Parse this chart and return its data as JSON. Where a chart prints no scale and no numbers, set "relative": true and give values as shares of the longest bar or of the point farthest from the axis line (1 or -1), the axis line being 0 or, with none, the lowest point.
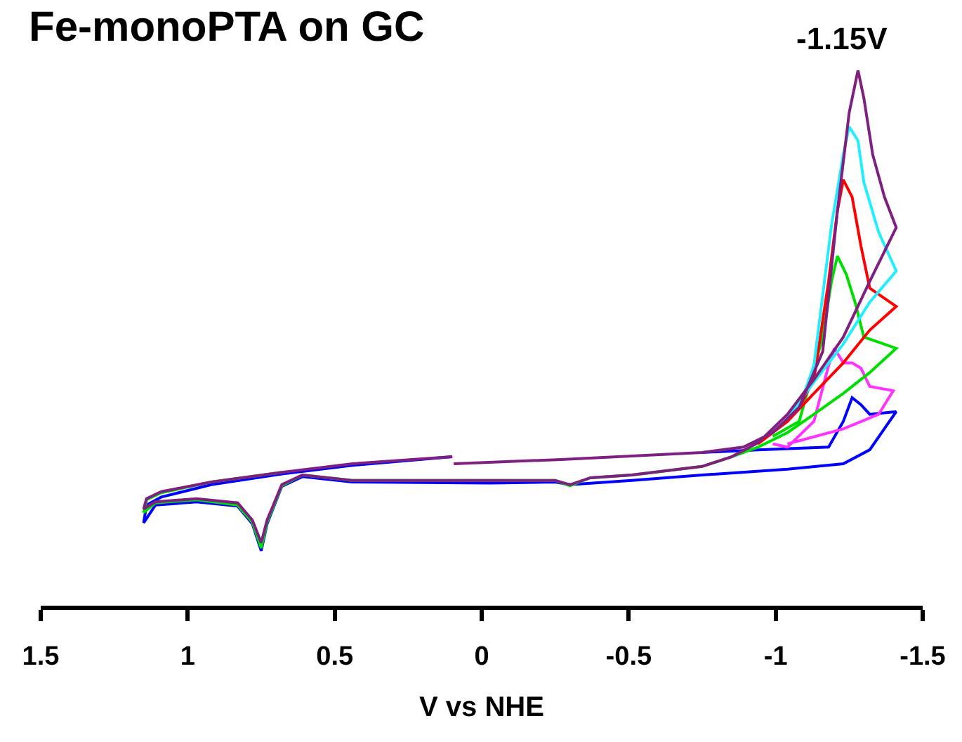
{
  "chart_data": {
    "type": "line",
    "title": "Fe-monoPTA on GC",
    "xlabel": "V vs NHE",
    "annotations": [
      "-1.15V"
    ],
    "relative": true,
    "xlim": [
      1.5,
      -1.5
    ],
    "xticks": [
      1.5,
      1,
      0.5,
      0,
      -0.5,
      -1,
      -1.5
    ],
    "tick_labels": "x",
    "grid": false,
    "marker": "none",
    "line_style": "solid",
    "series": [
      {
        "color": "#0000ff",
        "x": [
          -0.75,
          -0.94,
          -1.18,
          -1.23,
          -1.26,
          -1.29,
          -1.32,
          -1.41,
          -1.32,
          -1.23,
          -1.04,
          -0.75,
          -0.51,
          -0.3,
          -0.25,
          -0.03,
          0.44,
          0.61,
          0.68,
          0.73,
          0.75,
          0.78,
          0.83,
          0.97,
          1.11,
          1.15,
          1.14,
          1.09,
          0.92,
          0.68,
          0.44,
          0.1
        ],
        "values": [
          0.288,
          0.293,
          0.298,
          0.346,
          0.39,
          0.377,
          0.359,
          0.364,
          0.293,
          0.267,
          0.257,
          0.246,
          0.236,
          0.228,
          0.233,
          0.231,
          0.233,
          0.243,
          0.225,
          0.155,
          0.105,
          0.155,
          0.188,
          0.196,
          0.19,
          0.157,
          0.19,
          0.205,
          0.228,
          0.248,
          0.264,
          0.28
        ]
      },
      {
        "color": "#ff33ff",
        "x": [
          -0.99,
          -1.04,
          -1.13,
          -1.18,
          -1.2,
          -1.23,
          -1.26,
          -1.29,
          -1.32,
          -1.4,
          -1.35,
          -1.23,
          -1.04
        ],
        "values": [
          0.304,
          0.298,
          0.346,
          0.45,
          0.482,
          0.455,
          0.455,
          0.445,
          0.411,
          0.403,
          0.359,
          0.332,
          0.304
        ]
      },
      {
        "color": "#00dd00",
        "x": [
          -0.99,
          -1.08,
          -1.16,
          -1.19,
          -1.21,
          -1.24,
          -1.27,
          -1.3,
          -1.41,
          -1.32,
          -1.23,
          -1.13,
          -1.04,
          -0.94,
          -0.85,
          -0.75,
          -0.51,
          -0.37,
          -0.3,
          -0.25,
          -0.03,
          0.44,
          0.61,
          0.68,
          0.73,
          0.75,
          0.78,
          0.83,
          0.97,
          1.11,
          1.15,
          1.14,
          1.09,
          0.92,
          0.68
        ],
        "values": [
          0.318,
          0.346,
          0.503,
          0.607,
          0.654,
          0.62,
          0.568,
          0.503,
          0.482,
          0.437,
          0.398,
          0.359,
          0.325,
          0.298,
          0.28,
          0.262,
          0.246,
          0.241,
          0.226,
          0.236,
          0.236,
          0.236,
          0.246,
          0.226,
          0.158,
          0.11,
          0.158,
          0.19,
          0.2,
          0.194,
          0.176,
          0.2,
          0.213,
          0.233,
          0.251
        ]
      },
      {
        "color": "#ff0000",
        "x": [
          -1.08,
          -1.13,
          -1.18,
          -1.21,
          -1.23,
          -1.26,
          -1.29,
          -1.32,
          -1.41,
          -1.32,
          -1.23,
          -1.13,
          -1.04,
          -0.94
        ],
        "values": [
          0.372,
          0.424,
          0.607,
          0.738,
          0.796,
          0.764,
          0.673,
          0.594,
          0.56,
          0.516,
          0.455,
          0.398,
          0.346,
          0.304
        ]
      },
      {
        "color": "#22eeff",
        "x": [
          -1.08,
          -1.13,
          -1.19,
          -1.23,
          -1.25,
          -1.28,
          -1.3,
          -1.35,
          -1.41,
          -1.32,
          -1.23,
          -1.13,
          -1.04
        ],
        "values": [
          0.372,
          0.45,
          0.712,
          0.843,
          0.895,
          0.869,
          0.791,
          0.699,
          0.626,
          0.568,
          0.49,
          0.419,
          0.351
        ]
      },
      {
        "color": "#7f1f7f",
        "x": [
          0.095,
          -0.27,
          -0.75,
          -0.89,
          -0.99,
          -1.08,
          -1.16,
          -1.21,
          -1.25,
          -1.28,
          -1.3,
          -1.33,
          -1.37,
          -1.41,
          -1.32,
          -1.23,
          -1.13,
          -1.04,
          -0.94,
          -0.85,
          -0.75,
          -0.51,
          -0.37,
          -0.3,
          -0.25,
          -0.03,
          0.44,
          0.61,
          0.68,
          0.73,
          0.75,
          0.78,
          0.83,
          0.97,
          1.11,
          1.15,
          1.14,
          1.09,
          0.92,
          0.68,
          0.44,
          0.1
        ],
        "values": [
          0.267,
          0.275,
          0.288,
          0.298,
          0.325,
          0.372,
          0.476,
          0.738,
          0.921,
          1.0,
          0.948,
          0.843,
          0.764,
          0.707,
          0.607,
          0.503,
          0.424,
          0.359,
          0.306,
          0.28,
          0.262,
          0.246,
          0.241,
          0.228,
          0.236,
          0.236,
          0.236,
          0.246,
          0.228,
          0.162,
          0.12,
          0.162,
          0.194,
          0.202,
          0.196,
          0.183,
          0.202,
          0.215,
          0.233,
          0.251,
          0.267,
          0.28
        ]
      }
    ]
  }
}
